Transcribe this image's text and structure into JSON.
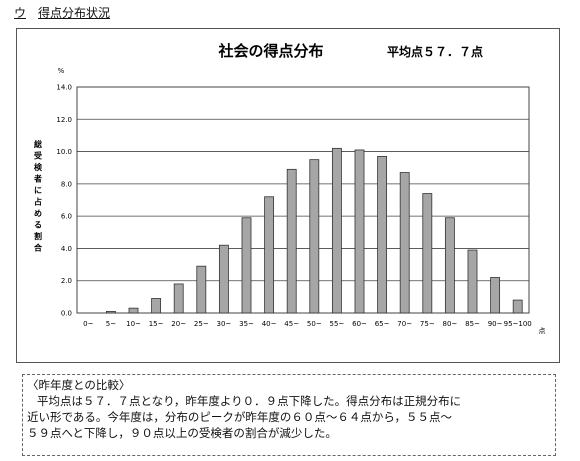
{
  "page": {
    "section_mark": "ウ",
    "section_title": "得点分布状況"
  },
  "chart_data": {
    "type": "bar",
    "title": "社会の得点分布",
    "subtitle": "平均点５７．７点",
    "ylabel": "総受検者に占める割合",
    "y_unit": "%",
    "x_unit": "点",
    "ylim": [
      0,
      14
    ],
    "yticks": [
      "0.0",
      "2.0",
      "4.0",
      "6.0",
      "8.0",
      "10.0",
      "12.0",
      "14.0"
    ],
    "categories": [
      "0~",
      "5~",
      "10~",
      "15~",
      "20~",
      "25~",
      "30~",
      "35~",
      "40~",
      "45~",
      "50~",
      "55~",
      "60~",
      "65~",
      "70~",
      "75~",
      "80~",
      "85~",
      "90~",
      "95~100"
    ],
    "values": [
      0.0,
      0.1,
      0.3,
      0.9,
      1.8,
      2.9,
      4.2,
      5.9,
      7.2,
      8.9,
      9.5,
      10.2,
      10.1,
      9.7,
      8.7,
      7.4,
      5.9,
      3.9,
      2.2,
      0.8
    ],
    "grid": true,
    "bar_color": "#a6a6a6"
  },
  "comparison": {
    "heading": "〈昨年度との比較〉",
    "lines": [
      "平均点は５７．７点となり，昨年度より０．９点下降した。得点分布は正規分布に",
      "近い形である。今年度は，分布のピークが昨年度の６０点～６４点から，５５点～",
      "５９点へと下降し，９０点以上の受検者の割合が減少した。"
    ]
  }
}
